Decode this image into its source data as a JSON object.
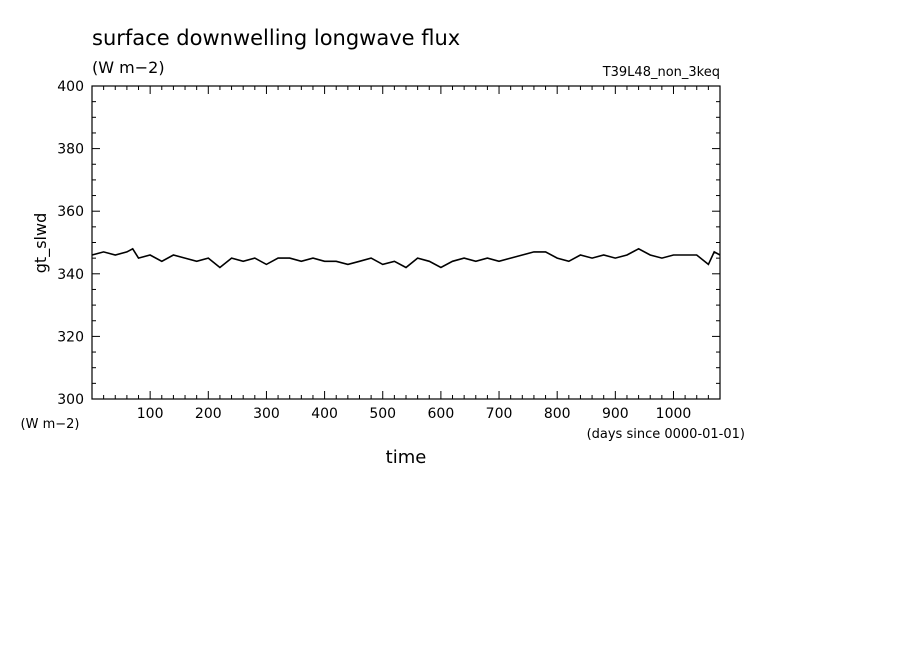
{
  "chart_data": {
    "type": "line",
    "title": "surface downwelling longwave flux",
    "subtitle": "(W m−2)",
    "experiment": "T39L48_non_3keq",
    "ylabel": "gt_slwd",
    "yunit": "(W m−2)",
    "xlabel": "time",
    "xunit": "(days since 0000-01-01)",
    "xlim": [
      0,
      1080
    ],
    "ylim": [
      300,
      400
    ],
    "xticks": [
      100,
      200,
      300,
      400,
      500,
      600,
      700,
      800,
      900,
      1000
    ],
    "yticks": [
      300,
      320,
      340,
      360,
      380,
      400
    ],
    "grid": false,
    "series": [
      {
        "x": [
          0,
          20,
          40,
          60,
          70,
          80,
          100,
          120,
          140,
          160,
          180,
          200,
          220,
          240,
          260,
          280,
          300,
          320,
          340,
          360,
          380,
          400,
          420,
          440,
          460,
          480,
          500,
          520,
          540,
          560,
          580,
          600,
          620,
          640,
          660,
          680,
          700,
          720,
          740,
          760,
          780,
          800,
          820,
          840,
          860,
          880,
          900,
          920,
          940,
          960,
          980,
          1000,
          1020,
          1040,
          1060,
          1070,
          1080
        ],
        "values": [
          346,
          347,
          346,
          347,
          348,
          345,
          346,
          344,
          346,
          345,
          344,
          345,
          342,
          345,
          344,
          345,
          343,
          345,
          345,
          344,
          345,
          344,
          344,
          343,
          344,
          345,
          343,
          344,
          342,
          345,
          344,
          342,
          344,
          345,
          344,
          345,
          344,
          345,
          346,
          347,
          347,
          345,
          344,
          346,
          345,
          346,
          345,
          346,
          348,
          346,
          345,
          346,
          346,
          346,
          343,
          347,
          346
        ]
      }
    ]
  }
}
